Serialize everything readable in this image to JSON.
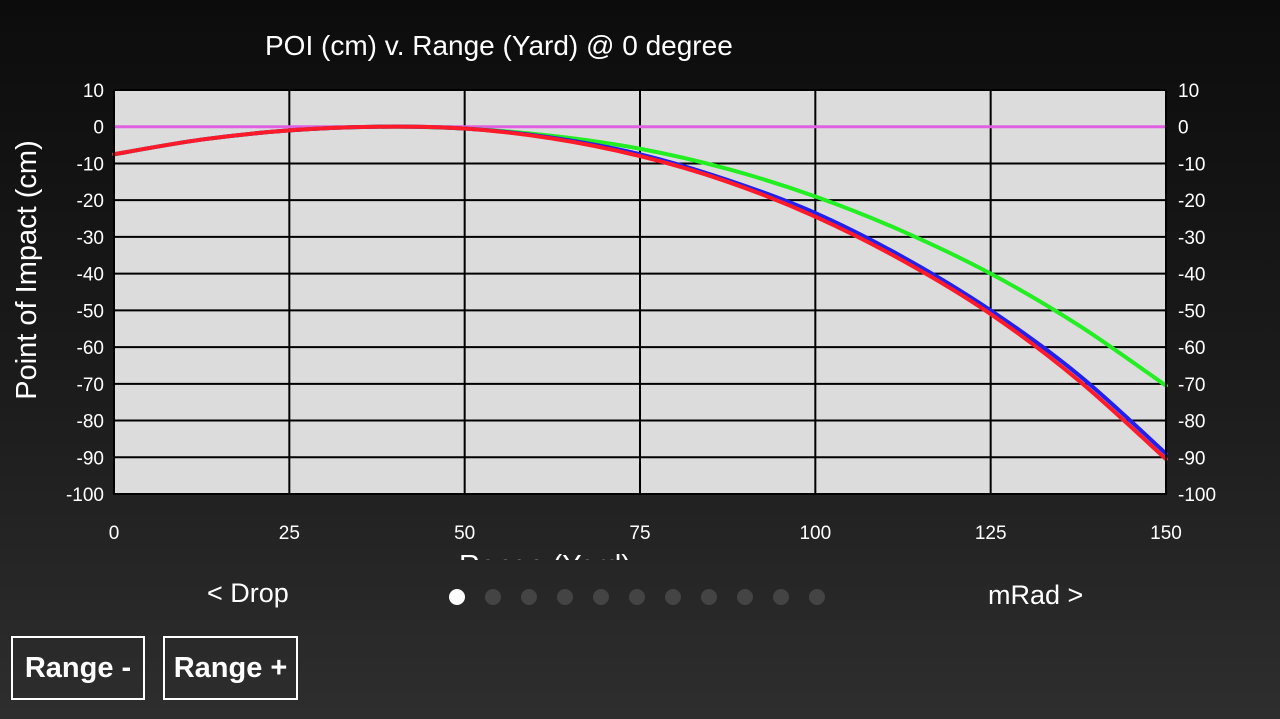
{
  "chart_data": {
    "type": "line",
    "title": "POI (cm) v. Range (Yard) @ 0 degree",
    "xlabel": "Range (Yard)",
    "ylabel": "Point of Impact (cm)",
    "xlim": [
      0,
      150
    ],
    "ylim": [
      -100,
      10
    ],
    "xticks": [
      0,
      25,
      50,
      75,
      100,
      125,
      150
    ],
    "yticks": [
      10,
      0,
      -10,
      -20,
      -30,
      -40,
      -50,
      -60,
      -70,
      -80,
      -90,
      -100
    ],
    "grid": true,
    "colors": {
      "plot_background": "#dcdcdc",
      "grid": "#000000",
      "zero_line": "#e060e0"
    },
    "series": [
      {
        "color": "#22ee22",
        "x": [
          0,
          12.5,
          25,
          37.5,
          50,
          62.5,
          75,
          87.5,
          100,
          112.5,
          125,
          137.5,
          150
        ],
        "y": [
          -7.5,
          -3.5,
          -1.0,
          0.0,
          -0.5,
          -2.5,
          -6.0,
          -11.5,
          -19.0,
          -28.5,
          -40.0,
          -54.0,
          -70.5
        ]
      },
      {
        "color": "#2020f0",
        "x": [
          0,
          12.5,
          25,
          37.5,
          50,
          62.5,
          75,
          87.5,
          100,
          112.5,
          125,
          137.5,
          150
        ],
        "y": [
          -7.5,
          -3.5,
          -1.0,
          0.0,
          -0.5,
          -3.0,
          -7.5,
          -14.5,
          -23.5,
          -35.5,
          -50.0,
          -67.5,
          -89.0
        ]
      },
      {
        "color": "#ff1a2a",
        "x": [
          0,
          12.5,
          25,
          37.5,
          50,
          62.5,
          75,
          87.5,
          100,
          112.5,
          125,
          137.5,
          150
        ],
        "y": [
          -7.5,
          -3.5,
          -1.0,
          0.0,
          -0.5,
          -3.2,
          -8.0,
          -15.0,
          -24.5,
          -36.5,
          -51.0,
          -69.0,
          -90.5
        ]
      }
    ],
    "zero_line": 0
  },
  "nav": {
    "prev_label": "< Drop",
    "next_label": "mRad >",
    "page_count": 11,
    "current_page": 1
  },
  "buttons": {
    "range_minus": "Range -",
    "range_plus": "Range +"
  }
}
